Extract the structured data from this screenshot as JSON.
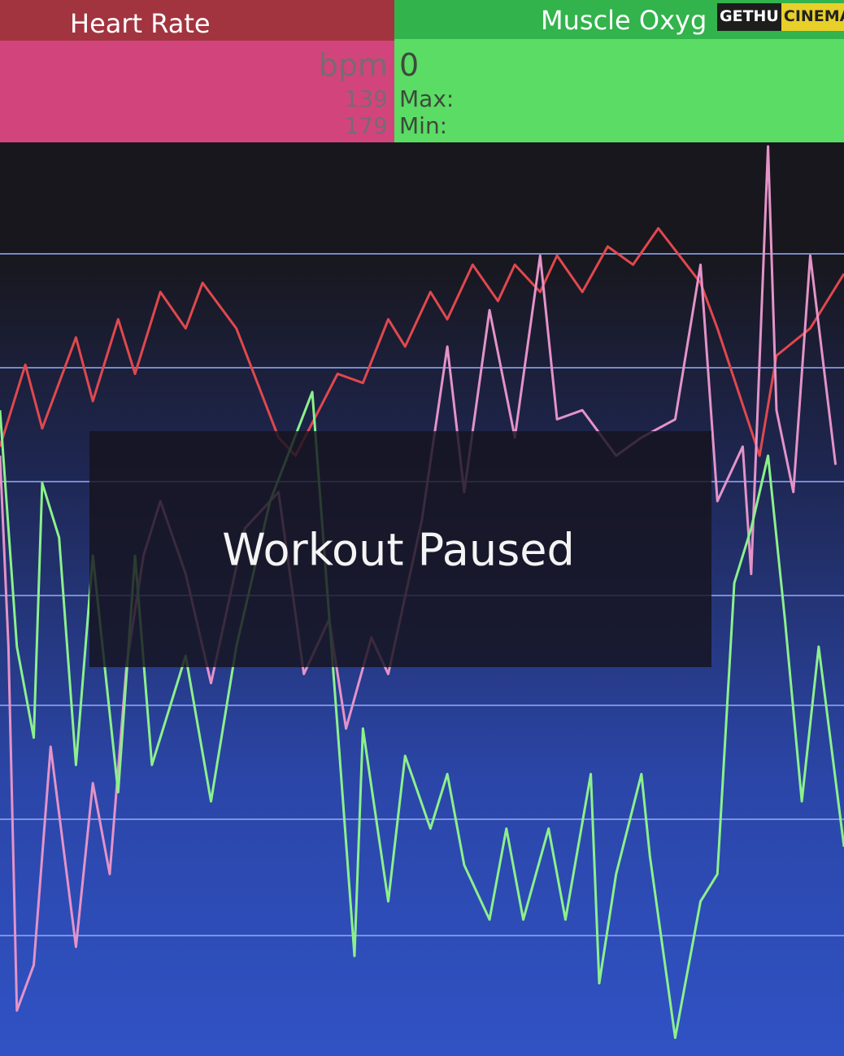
{
  "heart_panel": {
    "title": "Heart Rate",
    "unit": "bpm",
    "max": "139",
    "min": "179"
  },
  "oxygen_panel": {
    "title": "Muscle Oxyg",
    "value": "0",
    "max_label": "Max:",
    "min_label": "Min:"
  },
  "watermark": {
    "left": "GETHU",
    "right": "CINEMA"
  },
  "overlay": {
    "text": "Workout Paused"
  },
  "graph": {
    "series": [
      {
        "color": "#e0484e",
        "x": [
          0,
          3,
          5,
          9,
          11,
          14,
          16,
          19,
          22,
          24,
          28,
          33,
          35,
          40,
          43,
          46,
          48,
          51,
          53,
          56,
          59,
          61,
          64,
          66,
          69,
          72,
          75,
          78,
          83,
          85,
          90,
          92,
          96,
          100
        ],
        "values": [
          67,
          76,
          69,
          79,
          72,
          81,
          75,
          84,
          80,
          85,
          80,
          68,
          66,
          75,
          74,
          81,
          78,
          84,
          81,
          87,
          83,
          87,
          84,
          88,
          84,
          89,
          87,
          91,
          85,
          80,
          66,
          77,
          80,
          86
        ]
      },
      {
        "color": "#e493c8",
        "x": [
          0,
          1,
          2,
          4,
          6,
          9,
          11,
          13,
          15,
          17,
          19,
          22,
          25,
          29,
          33,
          36,
          39,
          41,
          44,
          46,
          50,
          53,
          55,
          58,
          61,
          64,
          66,
          69,
          73,
          76,
          80,
          83,
          85,
          88,
          89,
          91,
          92,
          94,
          96,
          99
        ],
        "values": [
          66,
          45,
          5,
          10,
          34,
          12,
          30,
          20,
          43,
          55,
          61,
          53,
          41,
          58,
          62,
          42,
          48,
          36,
          46,
          42,
          59,
          78,
          62,
          82,
          68,
          88,
          70,
          71,
          66,
          68,
          70,
          87,
          61,
          67,
          53,
          100,
          71,
          62,
          88,
          65
        ]
      },
      {
        "color": "#8cf08c",
        "x": [
          0,
          2,
          4,
          5,
          7,
          9,
          11,
          14,
          16,
          18,
          22,
          25,
          28,
          32,
          37,
          40,
          42,
          43,
          46,
          48,
          51,
          53,
          55,
          58,
          60,
          62,
          65,
          67,
          70,
          71,
          73,
          76,
          77,
          80,
          83,
          85,
          87,
          89,
          91,
          93,
          95,
          97,
          100
        ],
        "values": [
          71,
          45,
          35,
          63,
          57,
          32,
          55,
          29,
          55,
          32,
          44,
          28,
          45,
          61,
          73,
          36,
          11,
          36,
          17,
          33,
          25,
          31,
          21,
          15,
          25,
          15,
          25,
          15,
          31,
          8,
          20,
          31,
          22,
          2,
          17,
          20,
          52,
          58,
          66,
          48,
          28,
          45,
          23
        ]
      }
    ]
  }
}
